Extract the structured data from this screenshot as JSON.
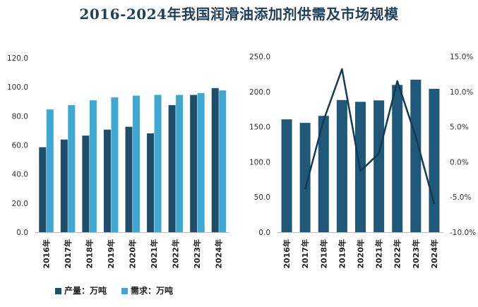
{
  "title": "2016-2024年我国润滑油添加剂供需及市场规模",
  "colors": {
    "production": "#1f4e6b",
    "demand": "#3ea7d2",
    "market_bar": "#1f5878",
    "growth_line": "#153a55"
  },
  "legend": {
    "production": "产量：万吨",
    "demand": "需求：万吨"
  },
  "chart_data": [
    {
      "type": "bar",
      "categories": [
        "2016年",
        "2017年",
        "2018年",
        "2019年",
        "2020年",
        "2021年",
        "2022年",
        "2023年",
        "2024年"
      ],
      "series": [
        {
          "name": "产量：万吨",
          "values": [
            58.5,
            63.8,
            66.5,
            70.6,
            72.6,
            68.0,
            87.5,
            94.5,
            99.2
          ]
        },
        {
          "name": "需求：万吨",
          "values": [
            84.5,
            87.5,
            90.8,
            92.8,
            94.0,
            94.5,
            94.5,
            95.8,
            97.6
          ]
        }
      ],
      "ylim": [
        0,
        120
      ],
      "yticks": [
        "0.0",
        "20.0",
        "40.0",
        "60.0",
        "80.0",
        "100.0",
        "120.0"
      ]
    },
    {
      "type": "bar",
      "categories": [
        "2016年",
        "2017年",
        "2018年",
        "2019年",
        "2020年",
        "2021年",
        "2022年",
        "2023年",
        "2024年"
      ],
      "series": [
        {
          "values": [
            160.5,
            155.5,
            165.5,
            188.0,
            185.5,
            187.5,
            209.5,
            217.0,
            204.0
          ]
        },
        {
          "type": "line",
          "axis": "right",
          "values": [
            null,
            -3.9,
            5.9,
            13.2,
            -1.3,
            1.2,
            11.5,
            3.6,
            -6.0
          ]
        }
      ],
      "ylim": [
        0,
        250
      ],
      "yticks": [
        "0.0",
        "50.0",
        "100.0",
        "150.0",
        "200.0",
        "250.0"
      ],
      "y2lim": [
        -10,
        15
      ],
      "y2ticks": [
        "-10.0%",
        "-5.0%",
        "0.0%",
        "5.0%",
        "10.0%",
        "15.0%"
      ]
    }
  ]
}
